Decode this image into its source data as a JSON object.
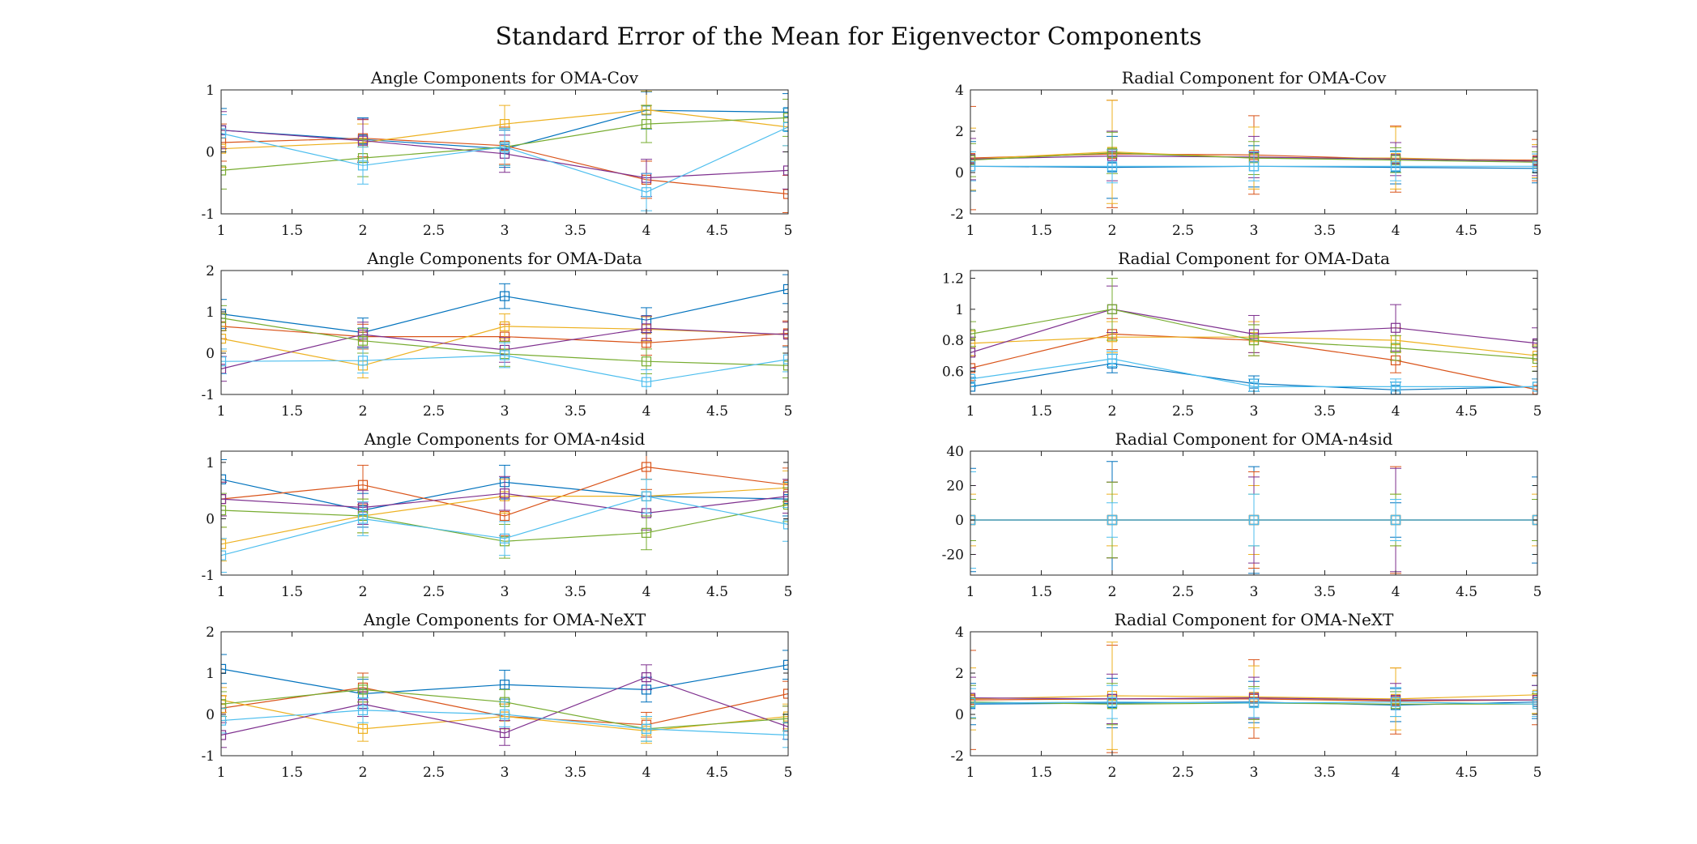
{
  "figure": {
    "title": "Standard Error of the Mean for Eigenvector Components"
  },
  "series_colors": [
    "#0072BD",
    "#D95319",
    "#EDB120",
    "#7E2F8E",
    "#77AC30",
    "#4DBEEE"
  ],
  "chart_data": [
    {
      "type": "line",
      "title": "Angle Components for OMA-Cov",
      "x": [
        1,
        2,
        3,
        4,
        5
      ],
      "xlim": [
        1,
        5
      ],
      "ylim": [
        -1,
        1
      ],
      "xticks": [
        "1",
        "1.5",
        "2",
        "2.5",
        "3",
        "3.5",
        "4",
        "4.5",
        "5"
      ],
      "yticks": [
        "-1",
        "0",
        "1"
      ],
      "marker": "square",
      "error_bars": true,
      "series": [
        {
          "values": [
            0.35,
            0.2,
            0.05,
            0.67,
            0.64
          ],
          "err": [
            0.35,
            0.35,
            0.3,
            0.3,
            0.3
          ]
        },
        {
          "values": [
            0.15,
            0.22,
            0.1,
            -0.45,
            -0.68
          ],
          "err": [
            0.3,
            0.3,
            0.3,
            0.3,
            0.3
          ]
        },
        {
          "values": [
            0.05,
            0.15,
            0.45,
            0.68,
            0.4
          ],
          "err": [
            0.3,
            0.3,
            0.3,
            0.3,
            0.3
          ]
        },
        {
          "values": [
            0.35,
            0.18,
            -0.03,
            -0.42,
            -0.3
          ],
          "err": [
            0.3,
            0.35,
            0.3,
            0.3,
            0.3
          ]
        },
        {
          "values": [
            -0.3,
            -0.1,
            0.08,
            0.45,
            0.55
          ],
          "err": [
            0.3,
            0.3,
            0.3,
            0.3,
            0.3
          ]
        },
        {
          "values": [
            0.3,
            -0.22,
            0.08,
            -0.65,
            0.4
          ],
          "err": [
            0.3,
            0.3,
            0.3,
            0.3,
            0.3
          ]
        }
      ]
    },
    {
      "type": "line",
      "title": "Radial Component for OMA-Cov",
      "x": [
        1,
        2,
        3,
        4,
        5
      ],
      "xlim": [
        1,
        5
      ],
      "ylim": [
        -2,
        4
      ],
      "xticks": [
        "1",
        "1.5",
        "2",
        "2.5",
        "3",
        "3.5",
        "4",
        "4.5",
        "5"
      ],
      "yticks": [
        "-2",
        "0",
        "2",
        "4"
      ],
      "marker": "square",
      "error_bars": true,
      "series": [
        {
          "values": [
            0.3,
            0.25,
            0.3,
            0.25,
            0.2
          ],
          "err": [
            1.2,
            1.5,
            1.0,
            0.8,
            0.7
          ]
        },
        {
          "values": [
            0.7,
            0.9,
            0.85,
            0.65,
            0.6
          ],
          "err": [
            2.5,
            2.6,
            1.9,
            1.6,
            1.0
          ]
        },
        {
          "values": [
            0.65,
            1.0,
            0.7,
            0.7,
            0.55
          ],
          "err": [
            1.5,
            2.5,
            1.5,
            1.5,
            0.8
          ]
        },
        {
          "values": [
            0.65,
            0.8,
            0.75,
            0.65,
            0.55
          ],
          "err": [
            1.0,
            1.2,
            1.0,
            0.8,
            0.7
          ]
        },
        {
          "values": [
            0.6,
            0.95,
            0.7,
            0.6,
            0.5
          ],
          "err": [
            0.8,
            1.0,
            0.8,
            0.6,
            0.5
          ]
        },
        {
          "values": [
            0.3,
            0.3,
            0.3,
            0.3,
            0.3
          ],
          "err": [
            0.7,
            0.8,
            0.7,
            0.7,
            0.6
          ]
        }
      ]
    },
    {
      "type": "line",
      "title": "Angle Components for OMA-Data",
      "x": [
        1,
        2,
        3,
        4,
        5
      ],
      "xlim": [
        1,
        5
      ],
      "ylim": [
        -1,
        2
      ],
      "xticks": [
        "1",
        "1.5",
        "2",
        "2.5",
        "3",
        "3.5",
        "4",
        "4.5",
        "5"
      ],
      "yticks": [
        "-1",
        "0",
        "1",
        "2"
      ],
      "marker": "square",
      "error_bars": true,
      "series": [
        {
          "values": [
            0.95,
            0.5,
            1.38,
            0.8,
            1.55
          ],
          "err": [
            0.35,
            0.35,
            0.3,
            0.3,
            0.35
          ]
        },
        {
          "values": [
            0.65,
            0.4,
            0.4,
            0.25,
            0.48
          ],
          "err": [
            0.3,
            0.3,
            0.3,
            0.3,
            0.3
          ]
        },
        {
          "values": [
            0.35,
            -0.3,
            0.65,
            0.58,
            0.45
          ],
          "err": [
            0.3,
            0.3,
            0.3,
            0.3,
            0.3
          ]
        },
        {
          "values": [
            -0.38,
            0.45,
            0.08,
            0.6,
            0.45
          ],
          "err": [
            0.3,
            0.3,
            0.3,
            0.3,
            0.3
          ]
        },
        {
          "values": [
            0.85,
            0.3,
            -0.02,
            -0.2,
            -0.3
          ],
          "err": [
            0.3,
            0.3,
            0.3,
            0.3,
            0.3
          ]
        },
        {
          "values": [
            -0.2,
            -0.18,
            -0.05,
            -0.7,
            -0.15
          ],
          "err": [
            0.3,
            0.3,
            0.3,
            0.3,
            0.3
          ]
        }
      ]
    },
    {
      "type": "line",
      "title": "Radial Component for OMA-Data",
      "x": [
        1,
        2,
        3,
        4,
        5
      ],
      "xlim": [
        1,
        5
      ],
      "ylim": [
        0.45,
        1.25
      ],
      "xticks": [
        "1",
        "1.5",
        "2",
        "2.5",
        "3",
        "3.5",
        "4",
        "4.5",
        "5"
      ],
      "yticks": [
        "0.6",
        "0.8",
        "1",
        "1.2"
      ],
      "marker": "square",
      "error_bars": true,
      "series": [
        {
          "values": [
            0.5,
            0.65,
            0.52,
            0.48,
            0.5
          ],
          "err": [
            0.06,
            0.06,
            0.05,
            0.05,
            0.05
          ]
        },
        {
          "values": [
            0.62,
            0.84,
            0.8,
            0.67,
            0.48
          ],
          "err": [
            0.08,
            0.1,
            0.1,
            0.08,
            0.07
          ]
        },
        {
          "values": [
            0.78,
            0.82,
            0.82,
            0.8,
            0.7
          ],
          "err": [
            0.08,
            0.1,
            0.1,
            0.08,
            0.07
          ]
        },
        {
          "values": [
            0.72,
            1.0,
            0.84,
            0.88,
            0.78
          ],
          "err": [
            0.1,
            0.15,
            0.12,
            0.15,
            0.1
          ]
        },
        {
          "values": [
            0.84,
            1.0,
            0.8,
            0.75,
            0.68
          ],
          "err": [
            0.08,
            0.2,
            0.1,
            0.08,
            0.08
          ]
        },
        {
          "values": [
            0.55,
            0.68,
            0.5,
            0.5,
            0.5
          ],
          "err": [
            0.05,
            0.05,
            0.05,
            0.05,
            0.05
          ]
        }
      ]
    },
    {
      "type": "line",
      "title": "Angle Components for OMA-n4sid",
      "x": [
        1,
        2,
        3,
        4,
        5
      ],
      "xlim": [
        1,
        5
      ],
      "ylim": [
        -1,
        1.2
      ],
      "xticks": [
        "1",
        "1.5",
        "2",
        "2.5",
        "3",
        "3.5",
        "4",
        "4.5",
        "5"
      ],
      "yticks": [
        "-1",
        "0",
        "1"
      ],
      "marker": "square",
      "error_bars": true,
      "series": [
        {
          "values": [
            0.7,
            0.15,
            0.65,
            0.4,
            0.35
          ],
          "err": [
            0.35,
            0.3,
            0.3,
            0.3,
            0.3
          ]
        },
        {
          "values": [
            0.35,
            0.6,
            0.05,
            0.92,
            0.6
          ],
          "err": [
            0.3,
            0.35,
            0.35,
            0.4,
            0.3
          ]
        },
        {
          "values": [
            -0.45,
            0.05,
            0.4,
            0.4,
            0.55
          ],
          "err": [
            0.3,
            0.3,
            0.3,
            0.3,
            0.3
          ]
        },
        {
          "values": [
            0.35,
            0.2,
            0.45,
            0.1,
            0.4
          ],
          "err": [
            0.3,
            0.3,
            0.3,
            0.3,
            0.3
          ]
        },
        {
          "values": [
            0.15,
            0.05,
            -0.4,
            -0.25,
            0.25
          ],
          "err": [
            0.3,
            0.3,
            0.3,
            0.3,
            0.3
          ]
        },
        {
          "values": [
            -0.65,
            0.0,
            -0.35,
            0.4,
            -0.1
          ],
          "err": [
            0.3,
            0.3,
            0.3,
            0.3,
            0.3
          ]
        }
      ]
    },
    {
      "type": "line",
      "title": "Radial Component for OMA-n4sid",
      "x": [
        1,
        2,
        3,
        4,
        5
      ],
      "xlim": [
        1,
        5
      ],
      "ylim": [
        -32,
        40
      ],
      "xticks": [
        "1",
        "1.5",
        "2",
        "2.5",
        "3",
        "3.5",
        "4",
        "4.5",
        "5"
      ],
      "yticks": [
        "-20",
        "0",
        "20",
        "40"
      ],
      "marker": "square",
      "error_bars": true,
      "series": [
        {
          "values": [
            0,
            0,
            0,
            0,
            0
          ],
          "err": [
            30,
            34,
            31,
            10,
            25
          ]
        },
        {
          "values": [
            0,
            0,
            0,
            0,
            0
          ],
          "err": [
            20,
            22,
            28,
            31,
            20
          ]
        },
        {
          "values": [
            0,
            0,
            0,
            0,
            0
          ],
          "err": [
            15,
            15,
            20,
            15,
            15
          ]
        },
        {
          "values": [
            0,
            0,
            0,
            0,
            0
          ],
          "err": [
            20,
            22,
            25,
            30,
            20
          ]
        },
        {
          "values": [
            0,
            0,
            0,
            0,
            0
          ],
          "err": [
            12,
            22,
            15,
            15,
            12
          ]
        },
        {
          "values": [
            0,
            0,
            0,
            0,
            0
          ],
          "err": [
            28,
            10,
            15,
            12,
            20
          ]
        }
      ]
    },
    {
      "type": "line",
      "title": "Angle Components for OMA-NeXT",
      "x": [
        1,
        2,
        3,
        4,
        5
      ],
      "xlim": [
        1,
        5
      ],
      "ylim": [
        -1,
        2
      ],
      "xticks": [
        "1",
        "1.5",
        "2",
        "2.5",
        "3",
        "3.5",
        "4",
        "4.5",
        "5"
      ],
      "yticks": [
        "-1",
        "0",
        "1",
        "2"
      ],
      "marker": "square",
      "error_bars": true,
      "series": [
        {
          "values": [
            1.1,
            0.5,
            0.72,
            0.6,
            1.2
          ],
          "err": [
            0.35,
            0.35,
            0.35,
            0.3,
            0.35
          ]
        },
        {
          "values": [
            0.15,
            0.65,
            -0.05,
            -0.25,
            0.5
          ],
          "err": [
            0.3,
            0.35,
            0.3,
            0.3,
            0.3
          ]
        },
        {
          "values": [
            0.35,
            -0.35,
            -0.05,
            -0.4,
            -0.05
          ],
          "err": [
            0.3,
            0.3,
            0.3,
            0.3,
            0.3
          ]
        },
        {
          "values": [
            -0.5,
            0.25,
            -0.45,
            0.9,
            -0.3
          ],
          "err": [
            0.3,
            0.3,
            0.3,
            0.3,
            0.3
          ]
        },
        {
          "values": [
            0.25,
            0.6,
            0.3,
            -0.35,
            -0.1
          ],
          "err": [
            0.3,
            0.3,
            0.3,
            0.3,
            0.3
          ]
        },
        {
          "values": [
            -0.15,
            0.1,
            0.0,
            -0.35,
            -0.5
          ],
          "err": [
            0.3,
            0.3,
            0.3,
            0.3,
            0.3
          ]
        }
      ]
    },
    {
      "type": "line",
      "title": "Radial Component for OMA-NeXT",
      "x": [
        1,
        2,
        3,
        4,
        5
      ],
      "xlim": [
        1,
        5
      ],
      "ylim": [
        -2,
        4
      ],
      "xticks": [
        "1",
        "1.5",
        "2",
        "2.5",
        "3",
        "3.5",
        "4",
        "4.5",
        "5"
      ],
      "yticks": [
        "-2",
        "0",
        "2",
        "4"
      ],
      "marker": "square",
      "error_bars": true,
      "series": [
        {
          "values": [
            0.5,
            0.55,
            0.6,
            0.45,
            0.6
          ],
          "err": [
            1.0,
            1.2,
            1.0,
            0.8,
            0.8
          ]
        },
        {
          "values": [
            0.7,
            0.75,
            0.75,
            0.65,
            0.7
          ],
          "err": [
            2.4,
            2.6,
            1.9,
            1.6,
            1.2
          ]
        },
        {
          "values": [
            0.75,
            0.9,
            0.85,
            0.75,
            0.95
          ],
          "err": [
            1.5,
            2.6,
            1.5,
            1.5,
            0.9
          ]
        },
        {
          "values": [
            0.8,
            0.75,
            0.8,
            0.7,
            0.7
          ],
          "err": [
            1.0,
            1.2,
            1.0,
            0.8,
            0.7
          ]
        },
        {
          "values": [
            0.6,
            0.5,
            0.55,
            0.5,
            0.5
          ],
          "err": [
            0.8,
            1.0,
            0.8,
            0.6,
            0.5
          ]
        },
        {
          "values": [
            0.55,
            0.6,
            0.55,
            0.6,
            0.5
          ],
          "err": [
            0.7,
            0.8,
            0.7,
            0.7,
            0.6
          ]
        }
      ]
    }
  ]
}
